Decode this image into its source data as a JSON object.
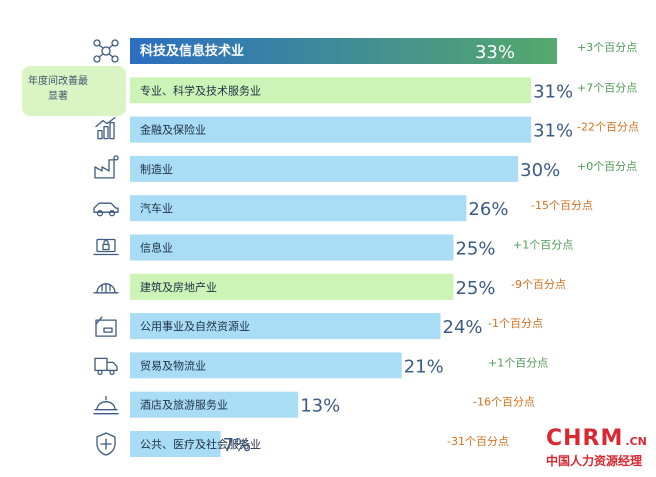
{
  "callout": {
    "text": "年度间改善最显著",
    "color": "#d9f5c4"
  },
  "logo": {
    "brand": "CHRM",
    "suffix": ".CN",
    "tagline": "中国人力资源经理"
  },
  "colors": {
    "bar_light_blue": "#a8ddf5",
    "bar_light_green": "#ccf4b6",
    "bar_top_start": "#2b6ec2",
    "bar_top_end": "#55a96c",
    "pct_text": "#3b5b84",
    "change_positive": "#4f9a55",
    "change_negative": "#d0701f"
  },
  "chart_data": {
    "type": "bar",
    "orientation": "horizontal",
    "categories": [
      "科技及信息技术业",
      "专业、科学及技术服务业",
      "金融及保险业",
      "制造业",
      "汽车业",
      "信息业",
      "建筑及房地产业",
      "公用事业及自然资源业",
      "贸易及物流业",
      "酒店及旅游服务业",
      "公共、医疗及社会服务业"
    ],
    "values": [
      33,
      31,
      31,
      30,
      26,
      25,
      25,
      24,
      21,
      13,
      7
    ],
    "value_labels": [
      "33%",
      "31%",
      "31%",
      "30%",
      "26%",
      "25%",
      "25%",
      "24%",
      "21%",
      "13%",
      "7%"
    ],
    "changes": [
      "+3个百分点",
      "+7个百分点",
      "-22个百分点",
      "+0个百分点",
      "-15个百分点",
      "+1个百分点",
      "-9个百分点",
      "-1个百分点",
      "+1个百分点",
      "-16个百分点",
      "-31个百分点"
    ],
    "change_direction": [
      "positive",
      "positive",
      "negative",
      "positive",
      "negative",
      "positive",
      "negative",
      "negative",
      "positive",
      "negative",
      "negative"
    ],
    "bar_style": [
      "gradient",
      "light-green",
      "light-blue",
      "light-blue",
      "light-blue",
      "light-blue",
      "light-green",
      "light-blue",
      "light-blue",
      "light-blue",
      "light-blue"
    ],
    "icons": [
      "network-icon",
      "microscope-icon",
      "finance-chart-icon",
      "factory-icon",
      "car-icon",
      "laptop-lock-icon",
      "hard-hat-icon",
      "utility-icon",
      "delivery-truck-icon",
      "cloche-icon",
      "medical-shield-icon"
    ],
    "xlim": [
      0,
      33
    ],
    "title": "",
    "xlabel": "",
    "ylabel": ""
  }
}
